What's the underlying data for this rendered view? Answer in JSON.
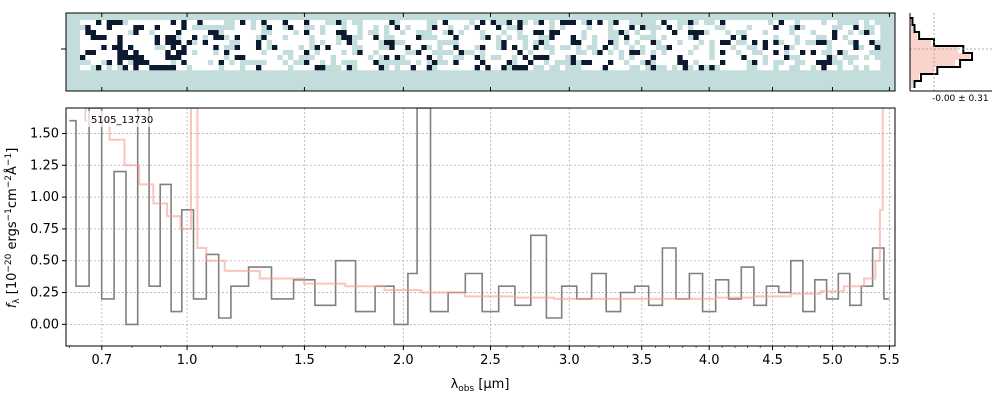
{
  "figure": {
    "object_id": "5105_13730",
    "histogram_annotation": "-0.00 ± 0.31"
  },
  "chart_data": [
    {
      "type": "heatmap",
      "panel": "2d-spectrum",
      "description_x": "wavelength (µm, matches main panel)",
      "xlim": [
        0.59,
        5.55
      ],
      "colormap": [
        "#ffffff",
        "#c3dcdc",
        "#0b1a2e"
      ],
      "background_color": "#c3dcdc"
    },
    {
      "type": "bar",
      "panel": "pixel-histogram",
      "annotation": "-0.00 ± 0.31",
      "data_color": "#000000",
      "model_color": "#f4a08f",
      "values": [
        0.02,
        0.05,
        0.12,
        0.35,
        0.8,
        1.0,
        0.75,
        0.4,
        0.15,
        0.05
      ]
    },
    {
      "type": "line",
      "panel": "1d-spectrum",
      "xlabel": "λ_obs [µm]",
      "ylabel": "f_λ [10^-20 ergs^-1 cm^-2 Å^-1]",
      "xlim": [
        0.59,
        5.55
      ],
      "ylim": [
        -0.17,
        1.7
      ],
      "x_scale": "sqrt",
      "grid": true,
      "x_tick_labels": [
        "0.7",
        "1.0",
        "1.5",
        "2.0",
        "2.5",
        "3.0",
        "3.5",
        "4.0",
        "4.5",
        "5.0",
        "5.5"
      ],
      "x_ticks": [
        0.7,
        1.0,
        1.5,
        2.0,
        2.5,
        3.0,
        3.5,
        4.0,
        4.5,
        5.0,
        5.5
      ],
      "y_tick_labels": [
        "0.00",
        "0.25",
        "0.50",
        "0.75",
        "1.00",
        "1.25",
        "1.50"
      ],
      "y_ticks": [
        0.0,
        0.25,
        0.5,
        0.75,
        1.0,
        1.25,
        1.5
      ],
      "series": [
        {
          "role": "flux",
          "color": "#808080",
          "x": [
            0.6,
            0.64,
            0.68,
            0.72,
            0.76,
            0.8,
            0.84,
            0.88,
            0.92,
            0.96,
            1.0,
            1.05,
            1.1,
            1.15,
            1.2,
            1.3,
            1.4,
            1.5,
            1.6,
            1.7,
            1.8,
            1.9,
            2.0,
            2.05,
            2.1,
            2.2,
            2.3,
            2.4,
            2.5,
            2.6,
            2.7,
            2.8,
            2.9,
            3.0,
            3.1,
            3.2,
            3.3,
            3.4,
            3.5,
            3.6,
            3.7,
            3.8,
            3.9,
            4.0,
            4.1,
            4.2,
            4.3,
            4.4,
            4.5,
            4.6,
            4.7,
            4.8,
            4.9,
            5.0,
            5.1,
            5.2,
            5.3,
            5.4,
            5.5
          ],
          "y": [
            1.6,
            0.3,
            1.7,
            0.2,
            1.2,
            0.0,
            1.7,
            0.3,
            1.1,
            0.1,
            0.9,
            0.2,
            0.55,
            0.05,
            0.3,
            0.45,
            0.2,
            0.35,
            0.15,
            0.5,
            0.1,
            0.3,
            0.0,
            0.4,
            1.7,
            0.1,
            0.25,
            0.4,
            0.1,
            0.3,
            0.15,
            0.7,
            0.05,
            0.3,
            0.2,
            0.4,
            0.1,
            0.25,
            0.3,
            0.15,
            0.6,
            0.2,
            0.4,
            0.1,
            0.35,
            0.2,
            0.45,
            0.15,
            0.3,
            0.25,
            0.5,
            0.1,
            0.35,
            0.2,
            0.4,
            0.15,
            0.3,
            0.6,
            0.2
          ]
        },
        {
          "role": "model",
          "color": "#f4a08f",
          "x": [
            0.6,
            0.7,
            0.75,
            0.8,
            0.85,
            0.9,
            0.95,
            1.0,
            1.03,
            1.05,
            1.1,
            1.2,
            1.4,
            1.6,
            1.8,
            2.0,
            2.2,
            2.5,
            2.8,
            3.0,
            3.3,
            3.6,
            3.9,
            4.2,
            4.5,
            4.8,
            5.0,
            5.2,
            5.35,
            5.4,
            5.43,
            5.45
          ],
          "y": [
            1.9,
            1.6,
            1.45,
            1.25,
            1.1,
            0.95,
            0.85,
            0.75,
            1.7,
            0.6,
            0.5,
            0.42,
            0.36,
            0.32,
            0.3,
            0.27,
            0.25,
            0.22,
            0.21,
            0.2,
            0.2,
            0.2,
            0.2,
            0.21,
            0.22,
            0.24,
            0.26,
            0.3,
            0.36,
            0.5,
            0.9,
            1.7
          ]
        }
      ]
    }
  ]
}
